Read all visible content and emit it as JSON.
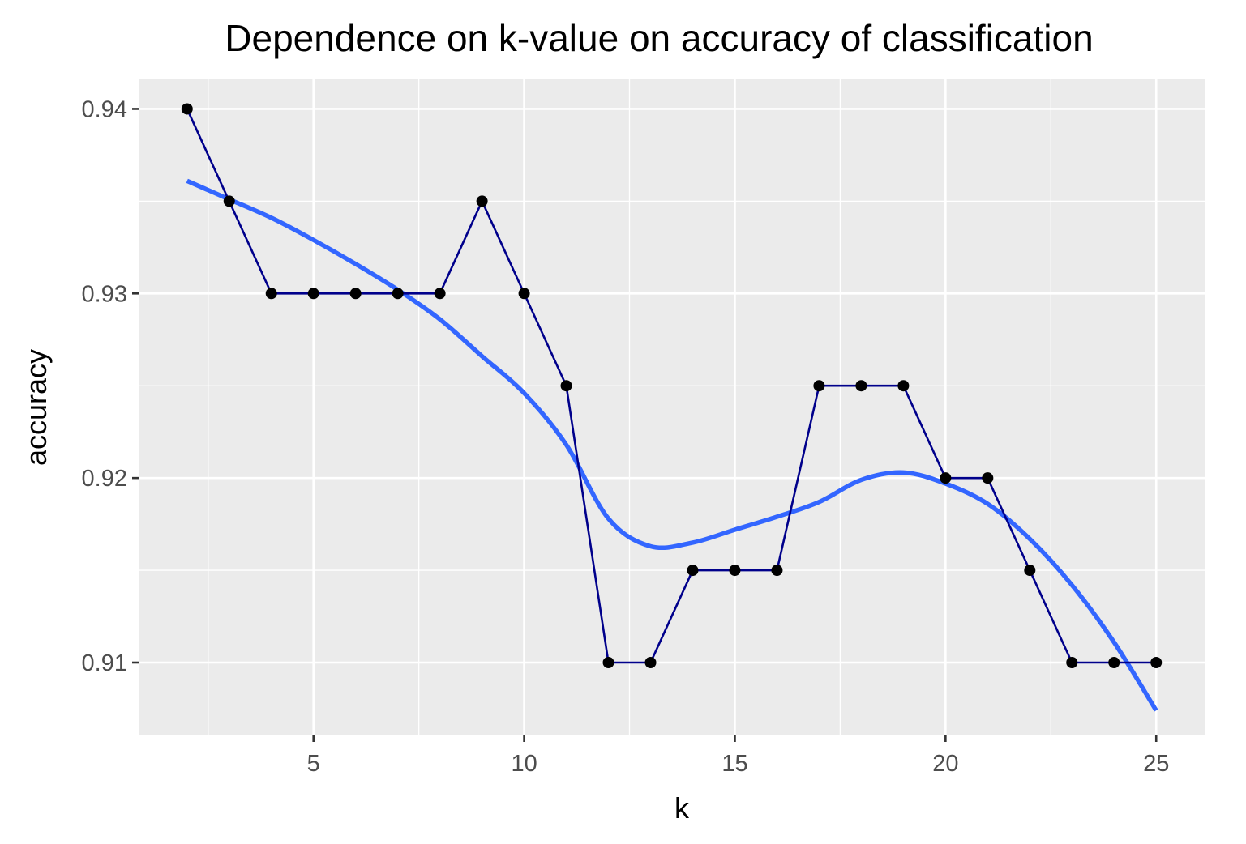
{
  "chart_data": {
    "type": "line",
    "title": "Dependence on k-value on accuracy of classification",
    "xlabel": "k",
    "ylabel": "accuracy",
    "xlim": [
      0.85,
      26.15
    ],
    "ylim": [
      0.90605,
      0.9416
    ],
    "x_ticks": [
      5,
      10,
      15,
      20,
      25
    ],
    "x_tick_labels": [
      "5",
      "10",
      "15",
      "20",
      "25"
    ],
    "x_minor_ticks": [
      2.5,
      7.5,
      12.5,
      17.5,
      22.5
    ],
    "y_ticks": [
      0.91,
      0.92,
      0.93,
      0.94
    ],
    "y_tick_labels": [
      "0.91",
      "0.92",
      "0.93",
      "0.94"
    ],
    "y_minor_ticks": [
      0.915,
      0.925,
      0.935
    ],
    "grid": true,
    "legend": "none",
    "series": [
      {
        "kind": "line+points",
        "x": [
          2,
          3,
          4,
          5,
          6,
          7,
          8,
          9,
          10,
          11,
          12,
          13,
          14,
          15,
          16,
          17,
          18,
          19,
          20,
          21,
          22,
          23,
          24,
          25
        ],
        "y": [
          0.94,
          0.935,
          0.93,
          0.93,
          0.93,
          0.93,
          0.93,
          0.935,
          0.93,
          0.925,
          0.91,
          0.91,
          0.915,
          0.915,
          0.915,
          0.925,
          0.925,
          0.925,
          0.92,
          0.92,
          0.915,
          0.91,
          0.91,
          0.91
        ]
      },
      {
        "kind": "smooth",
        "x": [
          2,
          3,
          4,
          5,
          6,
          7,
          8,
          9,
          10,
          11,
          12,
          13,
          14,
          15,
          16,
          17,
          18,
          19,
          20,
          21,
          22,
          23,
          24,
          25
        ],
        "y": [
          0.9361,
          0.9351,
          0.9341,
          0.9329,
          0.9316,
          0.9302,
          0.9286,
          0.9266,
          0.9246,
          0.9218,
          0.9178,
          0.9163,
          0.9165,
          0.9172,
          0.9179,
          0.9187,
          0.9199,
          0.9203,
          0.9197,
          0.9186,
          0.9167,
          0.9142,
          0.9111,
          0.9074
        ]
      }
    ],
    "colors": {
      "panel": "#ebebeb",
      "grid": "#ffffff",
      "line": "#00008b",
      "point": "#000000",
      "smooth": "#3366ff",
      "tick": "#333333",
      "tick_label": "#4d4d4d"
    }
  }
}
